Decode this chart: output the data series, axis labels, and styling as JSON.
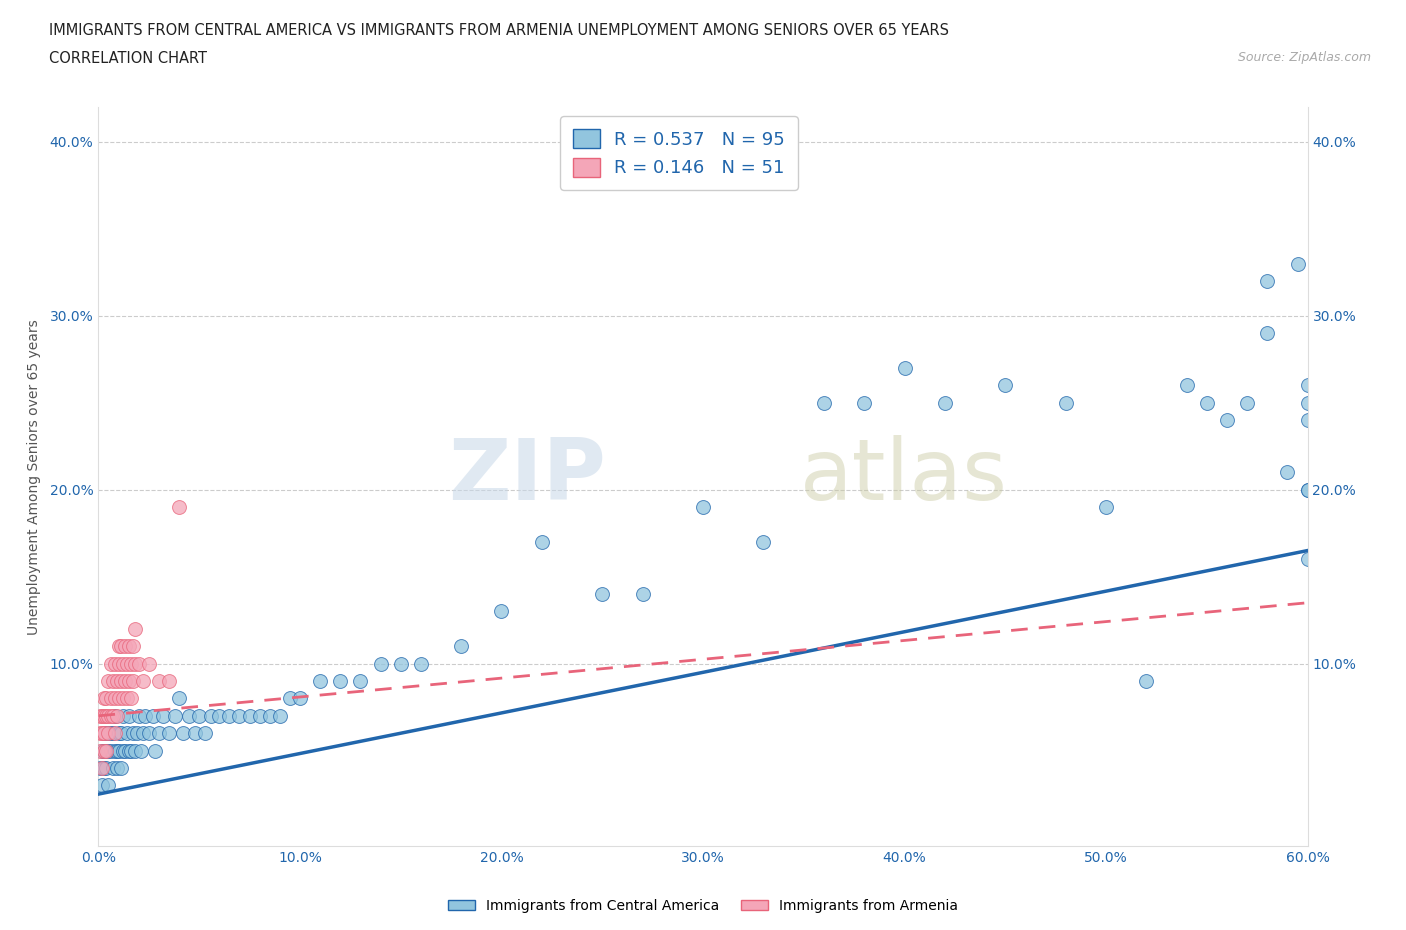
{
  "title_line1": "IMMIGRANTS FROM CENTRAL AMERICA VS IMMIGRANTS FROM ARMENIA UNEMPLOYMENT AMONG SENIORS OVER 65 YEARS",
  "title_line2": "CORRELATION CHART",
  "source_text": "Source: ZipAtlas.com",
  "ylabel": "Unemployment Among Seniors over 65 years",
  "watermark": "ZIPatlas",
  "legend_label1": "Immigrants from Central America",
  "legend_label2": "Immigrants from Armenia",
  "R1": 0.537,
  "N1": 95,
  "R2": 0.146,
  "N2": 51,
  "color1": "#92c5de",
  "color2": "#f4a6b8",
  "trendline1_color": "#2166ac",
  "trendline2_color": "#e8647a",
  "xlim": [
    0.0,
    0.6
  ],
  "ylim": [
    -0.005,
    0.42
  ],
  "xticks": [
    0.0,
    0.1,
    0.2,
    0.3,
    0.4,
    0.5,
    0.6
  ],
  "yticks": [
    0.1,
    0.2,
    0.3,
    0.4
  ],
  "blue_x": [
    0.001,
    0.002,
    0.002,
    0.003,
    0.003,
    0.003,
    0.004,
    0.004,
    0.005,
    0.005,
    0.005,
    0.006,
    0.006,
    0.007,
    0.007,
    0.008,
    0.008,
    0.009,
    0.009,
    0.01,
    0.01,
    0.011,
    0.011,
    0.012,
    0.012,
    0.013,
    0.014,
    0.015,
    0.015,
    0.016,
    0.017,
    0.018,
    0.019,
    0.02,
    0.021,
    0.022,
    0.023,
    0.025,
    0.027,
    0.028,
    0.03,
    0.032,
    0.035,
    0.038,
    0.04,
    0.042,
    0.045,
    0.048,
    0.05,
    0.053,
    0.056,
    0.06,
    0.065,
    0.07,
    0.075,
    0.08,
    0.085,
    0.09,
    0.095,
    0.1,
    0.11,
    0.12,
    0.13,
    0.14,
    0.15,
    0.16,
    0.18,
    0.2,
    0.22,
    0.25,
    0.27,
    0.3,
    0.33,
    0.36,
    0.38,
    0.4,
    0.42,
    0.45,
    0.48,
    0.5,
    0.52,
    0.54,
    0.55,
    0.56,
    0.57,
    0.58,
    0.58,
    0.59,
    0.595,
    0.6,
    0.6,
    0.6,
    0.6,
    0.6,
    0.6
  ],
  "blue_y": [
    0.04,
    0.05,
    0.03,
    0.05,
    0.04,
    0.06,
    0.05,
    0.04,
    0.06,
    0.05,
    0.03,
    0.05,
    0.06,
    0.04,
    0.06,
    0.05,
    0.07,
    0.05,
    0.04,
    0.06,
    0.05,
    0.04,
    0.06,
    0.05,
    0.07,
    0.05,
    0.06,
    0.05,
    0.07,
    0.05,
    0.06,
    0.05,
    0.06,
    0.07,
    0.05,
    0.06,
    0.07,
    0.06,
    0.07,
    0.05,
    0.06,
    0.07,
    0.06,
    0.07,
    0.08,
    0.06,
    0.07,
    0.06,
    0.07,
    0.06,
    0.07,
    0.07,
    0.07,
    0.07,
    0.07,
    0.07,
    0.07,
    0.07,
    0.08,
    0.08,
    0.09,
    0.09,
    0.09,
    0.1,
    0.1,
    0.1,
    0.11,
    0.13,
    0.17,
    0.14,
    0.14,
    0.19,
    0.17,
    0.25,
    0.25,
    0.27,
    0.25,
    0.26,
    0.25,
    0.19,
    0.09,
    0.26,
    0.25,
    0.24,
    0.25,
    0.32,
    0.29,
    0.21,
    0.33,
    0.2,
    0.16,
    0.25,
    0.24,
    0.26,
    0.2
  ],
  "pink_x": [
    0.001,
    0.001,
    0.001,
    0.002,
    0.002,
    0.002,
    0.003,
    0.003,
    0.003,
    0.003,
    0.004,
    0.004,
    0.004,
    0.005,
    0.005,
    0.005,
    0.006,
    0.006,
    0.006,
    0.007,
    0.007,
    0.008,
    0.008,
    0.008,
    0.009,
    0.009,
    0.01,
    0.01,
    0.01,
    0.011,
    0.011,
    0.012,
    0.012,
    0.013,
    0.013,
    0.014,
    0.014,
    0.015,
    0.015,
    0.016,
    0.016,
    0.017,
    0.017,
    0.018,
    0.018,
    0.02,
    0.022,
    0.025,
    0.03,
    0.035,
    0.04
  ],
  "pink_y": [
    0.05,
    0.06,
    0.07,
    0.04,
    0.06,
    0.07,
    0.05,
    0.06,
    0.07,
    0.08,
    0.05,
    0.07,
    0.08,
    0.06,
    0.07,
    0.09,
    0.07,
    0.08,
    0.1,
    0.07,
    0.09,
    0.06,
    0.08,
    0.1,
    0.07,
    0.09,
    0.08,
    0.1,
    0.11,
    0.09,
    0.11,
    0.08,
    0.1,
    0.09,
    0.11,
    0.08,
    0.1,
    0.09,
    0.11,
    0.08,
    0.1,
    0.09,
    0.11,
    0.1,
    0.12,
    0.1,
    0.09,
    0.1,
    0.09,
    0.09,
    0.19
  ],
  "trendline1_x0": 0.0,
  "trendline1_y0": 0.025,
  "trendline1_x1": 0.6,
  "trendline1_y1": 0.165,
  "trendline2_x0": 0.0,
  "trendline2_y0": 0.07,
  "trendline2_x1": 0.6,
  "trendline2_y1": 0.135
}
